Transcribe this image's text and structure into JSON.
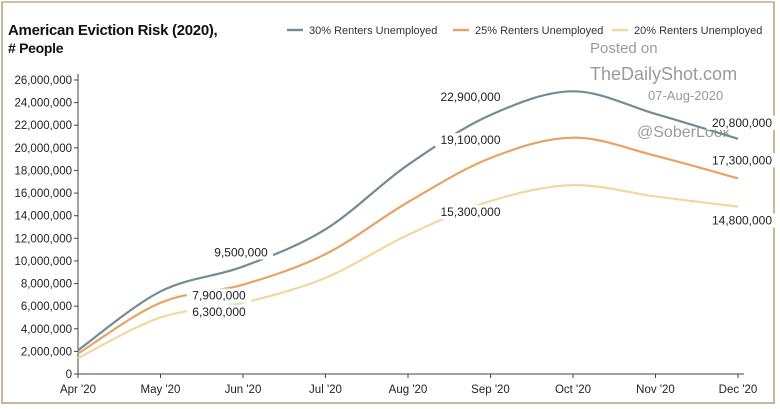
{
  "title_line1": "American Eviction Risk (2020),",
  "title_line2": "# People",
  "watermark": {
    "line1": "Posted on",
    "line2": "TheDailyShot.com",
    "line3": "07-Aug-2020",
    "line4": "@SoberLook"
  },
  "colors": {
    "s30": "#728c96",
    "s25": "#eaa263",
    "s20": "#f1d8a0",
    "axis": "#444444",
    "text": "#222222"
  },
  "chart_data": {
    "type": "line",
    "categories": [
      "Apr '20",
      "May '20",
      "Jun '20",
      "Jul '20",
      "Aug '20",
      "Sep '20",
      "Oct '20",
      "Nov '20",
      "Dec '20"
    ],
    "ylim": [
      0,
      26000000
    ],
    "yticks": [
      "0",
      "2,000,000",
      "4,000,000",
      "6,000,000",
      "8,000,000",
      "10,000,000",
      "12,000,000",
      "14,000,000",
      "16,000,000",
      "18,000,000",
      "20,000,000",
      "22,000,000",
      "24,000,000",
      "26,000,000"
    ],
    "grid": false,
    "legend_position": "top",
    "series": [
      {
        "name": "30% Renters Unemployed",
        "values": [
          2100000,
          7300000,
          9500000,
          12800000,
          18500000,
          22900000,
          25000000,
          23000000,
          20800000
        ]
      },
      {
        "name": "25% Renters Unemployed",
        "values": [
          1800000,
          6300000,
          7900000,
          10600000,
          15200000,
          19100000,
          20900000,
          19300000,
          17300000
        ]
      },
      {
        "name": "20% Renters Unemployed",
        "values": [
          1400000,
          5000000,
          6300000,
          8500000,
          12300000,
          15300000,
          16700000,
          15700000,
          14800000
        ]
      }
    ],
    "annotations": [
      {
        "series": 0,
        "index": 2,
        "text": "9,500,000"
      },
      {
        "series": 0,
        "index": 5,
        "text": "22,900,000"
      },
      {
        "series": 0,
        "index": 8,
        "text": "20,800,000"
      },
      {
        "series": 1,
        "index": 2,
        "text": "7,900,000"
      },
      {
        "series": 1,
        "index": 5,
        "text": "19,100,000"
      },
      {
        "series": 1,
        "index": 8,
        "text": "17,300,000"
      },
      {
        "series": 2,
        "index": 2,
        "text": "6,300,000"
      },
      {
        "series": 2,
        "index": 5,
        "text": "15,300,000"
      },
      {
        "series": 2,
        "index": 8,
        "text": "14,800,000"
      }
    ]
  }
}
